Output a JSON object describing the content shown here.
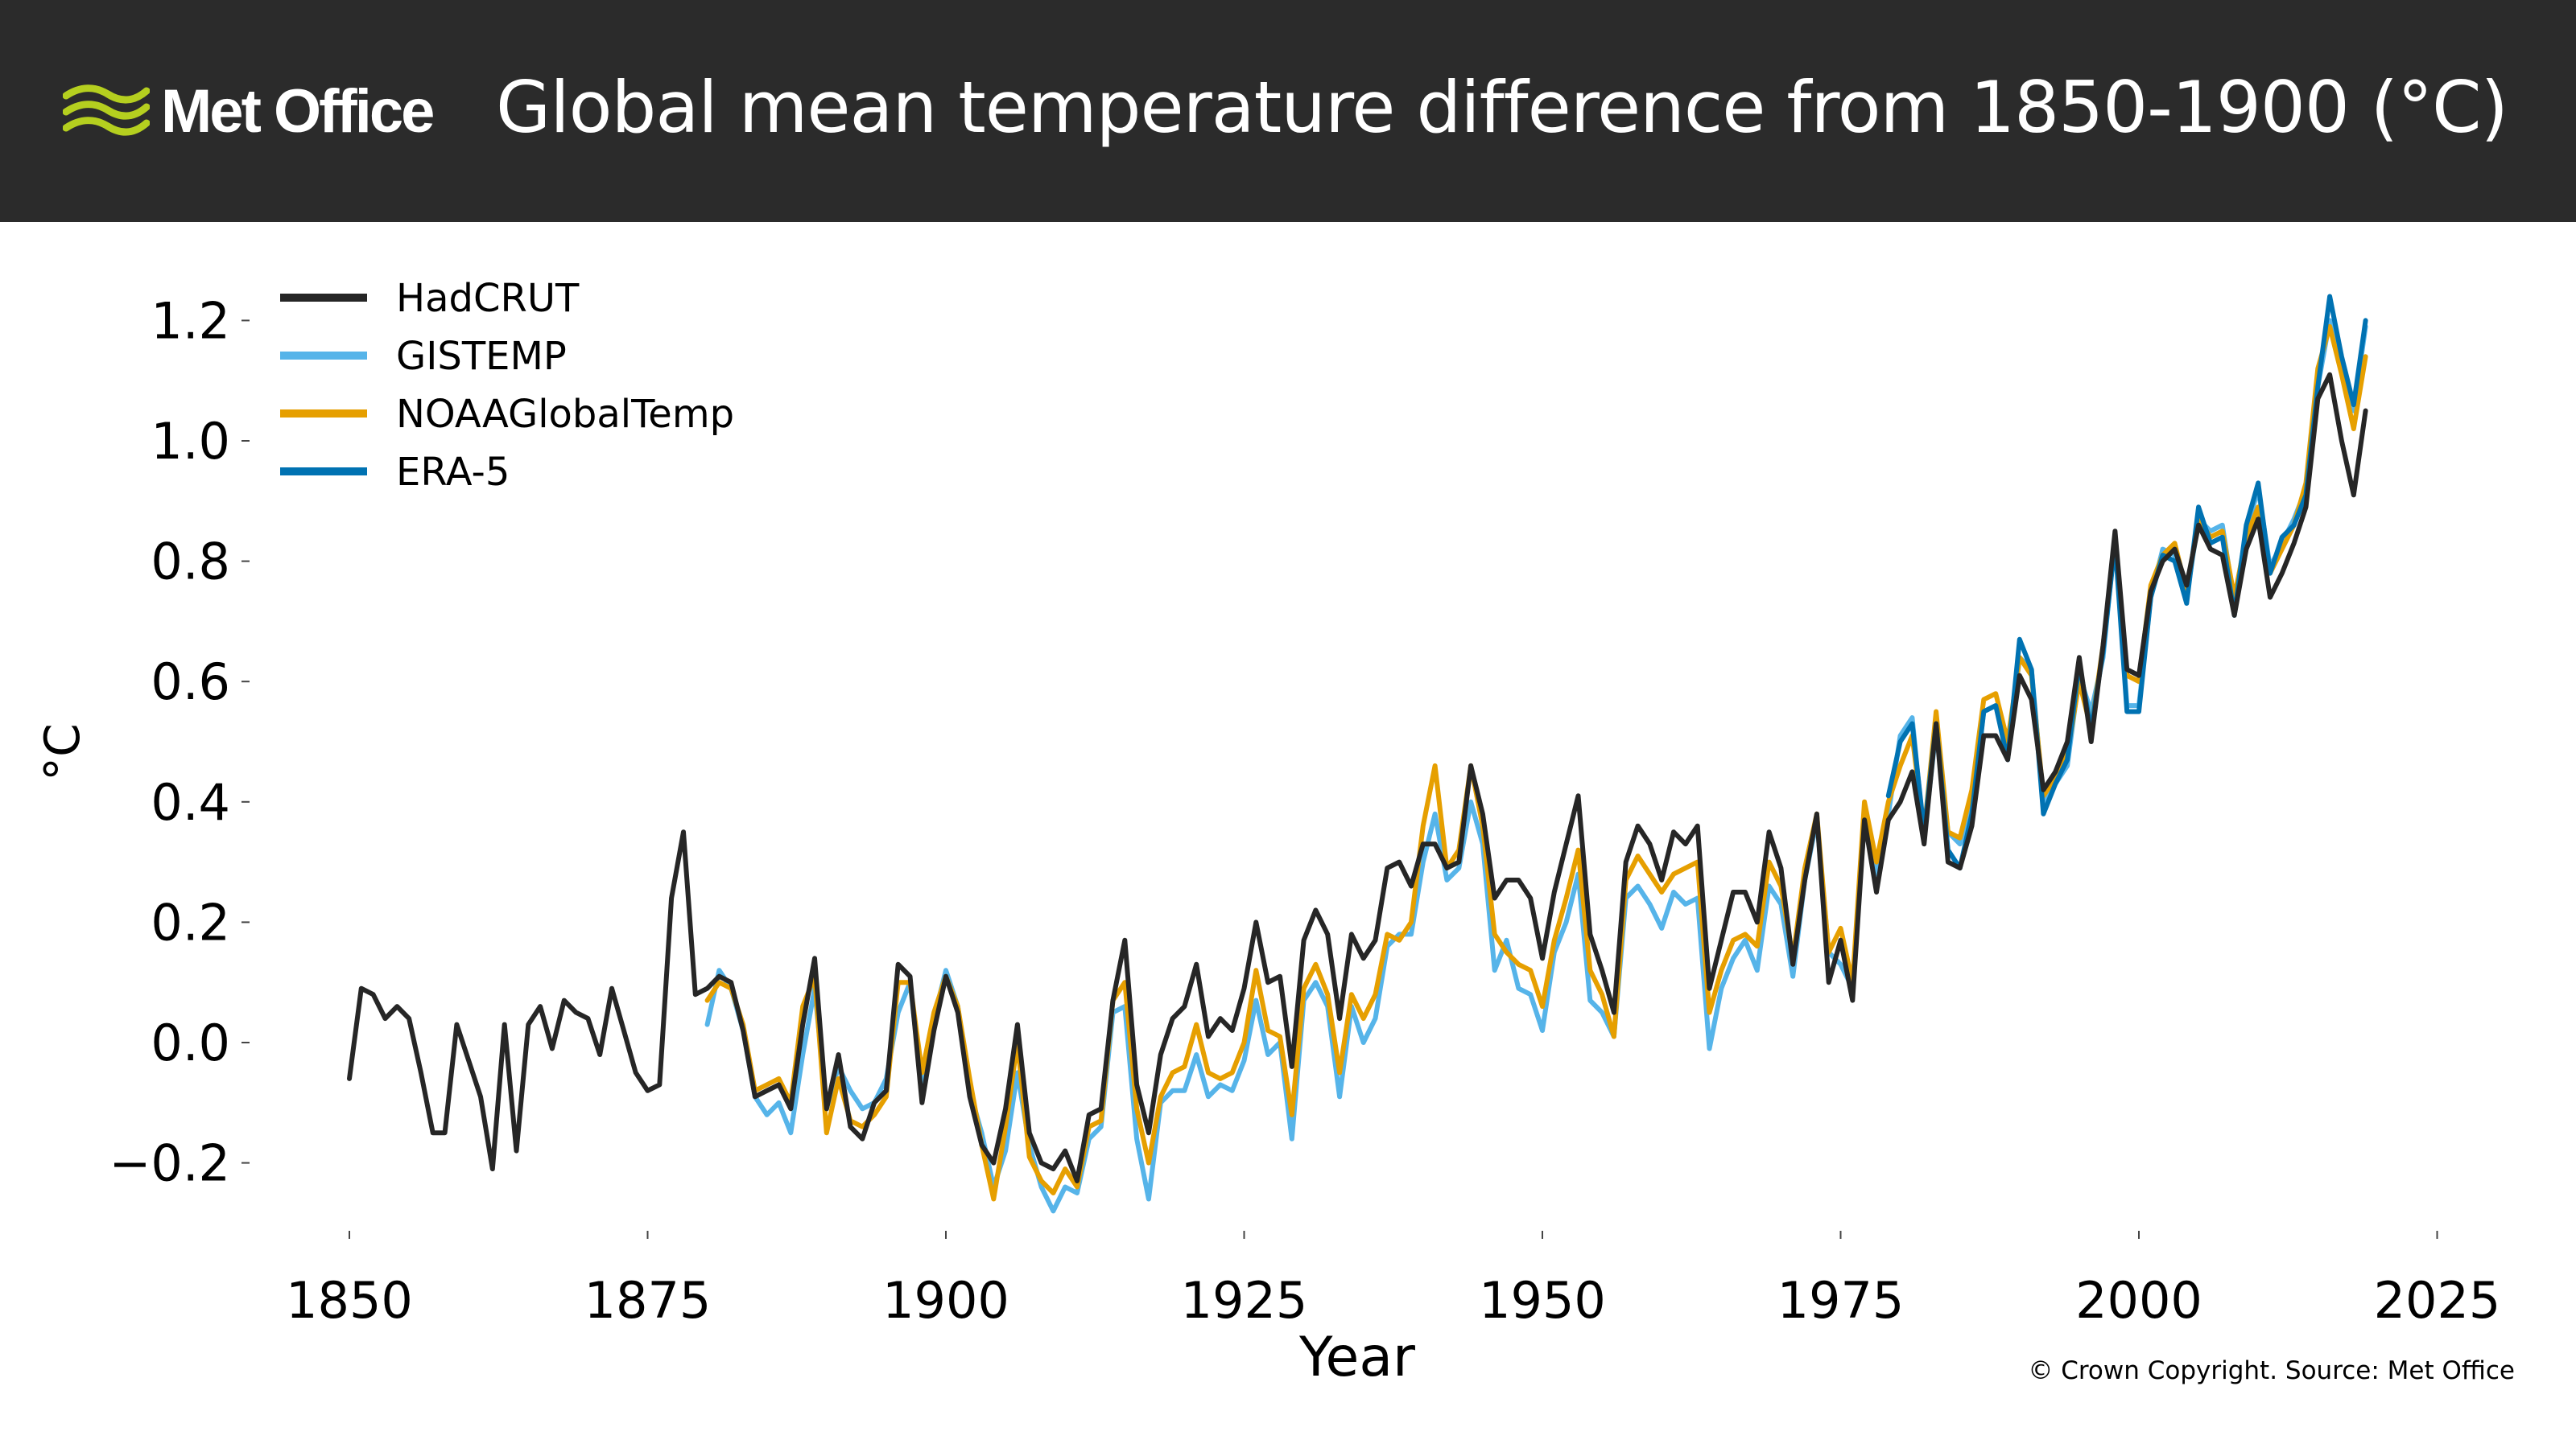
{
  "header": {
    "logo_text": "Met Office",
    "title": "Global mean temperature difference from 1850-1900 (°C)"
  },
  "copyright": "© Crown Copyright. Source: Met Office",
  "colors": {
    "header_bg": "#2b2b2b",
    "logo_accent": "#b5cf1f",
    "HadCRUT": "#262626",
    "GISTEMP": "#56b4e9",
    "NOAAGlobalTemp": "#e69f00",
    "ERA-5": "#0072b2"
  },
  "chart_data": {
    "type": "line",
    "title": "Global mean temperature difference from 1850-1900 (°C)",
    "xlabel": "Year",
    "ylabel": "°C",
    "xlim": [
      1850,
      2020
    ],
    "ylim": [
      -0.3,
      1.25
    ],
    "x_ticks": [
      1850,
      1875,
      1900,
      1925,
      1950,
      1975,
      2000,
      2025
    ],
    "y_ticks": [
      -0.2,
      0.0,
      0.2,
      0.4,
      0.6,
      0.8,
      1.0,
      1.2
    ],
    "y_tick_labels": [
      "−0.2",
      "0.0",
      "0.2",
      "0.4",
      "0.6",
      "0.8",
      "1.0",
      "1.2"
    ],
    "grid": false,
    "legend_position": "top-left",
    "series": [
      {
        "name": "GISTEMP",
        "x_start": 1880,
        "values": [
          0.03,
          0.12,
          0.09,
          0.02,
          -0.09,
          -0.12,
          -0.1,
          -0.15,
          -0.02,
          0.09,
          -0.11,
          -0.04,
          -0.08,
          -0.11,
          -0.1,
          -0.06,
          0.05,
          0.1,
          -0.08,
          0.04,
          0.12,
          0.06,
          -0.08,
          -0.15,
          -0.24,
          -0.18,
          -0.05,
          -0.17,
          -0.24,
          -0.28,
          -0.24,
          -0.25,
          -0.16,
          -0.14,
          0.05,
          0.06,
          -0.16,
          -0.26,
          -0.1,
          -0.08,
          -0.08,
          -0.02,
          -0.09,
          -0.07,
          -0.08,
          -0.03,
          0.07,
          -0.02,
          0.0,
          -0.16,
          0.07,
          0.1,
          0.06,
          -0.09,
          0.06,
          0.0,
          0.04,
          0.16,
          0.18,
          0.18,
          0.3,
          0.38,
          0.27,
          0.29,
          0.4,
          0.33,
          0.12,
          0.17,
          0.09,
          0.08,
          0.02,
          0.15,
          0.2,
          0.28,
          0.07,
          0.05,
          0.01,
          0.24,
          0.26,
          0.23,
          0.19,
          0.25,
          0.23,
          0.24,
          -0.01,
          0.09,
          0.14,
          0.17,
          0.12,
          0.26,
          0.23,
          0.11,
          0.27,
          0.37,
          0.15,
          0.13,
          0.09,
          0.37,
          0.28,
          0.38,
          0.51,
          0.54,
          0.34,
          0.52,
          0.35,
          0.33,
          0.39,
          0.55,
          0.56,
          0.48,
          0.64,
          0.62,
          0.4,
          0.43,
          0.46,
          0.61,
          0.55,
          0.64,
          0.84,
          0.56,
          0.56,
          0.74,
          0.82,
          0.81,
          0.74,
          0.87,
          0.85,
          0.86,
          0.73,
          0.85,
          0.92,
          0.79,
          0.83,
          0.87,
          0.92,
          1.09,
          1.2,
          1.12,
          1.05,
          1.19
        ]
      },
      {
        "name": "NOAAGlobalTemp",
        "x_start": 1880,
        "values": [
          0.07,
          0.1,
          0.09,
          0.03,
          -0.08,
          -0.07,
          -0.06,
          -0.1,
          0.06,
          0.11,
          -0.15,
          -0.06,
          -0.13,
          -0.14,
          -0.12,
          -0.09,
          0.1,
          0.1,
          -0.05,
          0.05,
          0.11,
          0.06,
          -0.06,
          -0.17,
          -0.26,
          -0.14,
          0.0,
          -0.19,
          -0.23,
          -0.25,
          -0.21,
          -0.24,
          -0.14,
          -0.13,
          0.07,
          0.1,
          -0.11,
          -0.2,
          -0.09,
          -0.05,
          -0.04,
          0.03,
          -0.05,
          -0.06,
          -0.05,
          0.0,
          0.12,
          0.02,
          0.01,
          -0.12,
          0.09,
          0.13,
          0.08,
          -0.05,
          0.08,
          0.04,
          0.08,
          0.18,
          0.17,
          0.2,
          0.36,
          0.46,
          0.29,
          0.32,
          0.46,
          0.36,
          0.18,
          0.15,
          0.13,
          0.12,
          0.06,
          0.17,
          0.24,
          0.32,
          0.12,
          0.08,
          0.01,
          0.27,
          0.31,
          0.28,
          0.25,
          0.28,
          0.29,
          0.3,
          0.05,
          0.12,
          0.17,
          0.18,
          0.16,
          0.3,
          0.26,
          0.14,
          0.29,
          0.38,
          0.15,
          0.19,
          0.1,
          0.4,
          0.3,
          0.4,
          0.46,
          0.51,
          0.35,
          0.55,
          0.35,
          0.34,
          0.42,
          0.57,
          0.58,
          0.5,
          0.64,
          0.61,
          0.41,
          0.44,
          0.48,
          0.6,
          0.52,
          0.66,
          0.83,
          0.61,
          0.6,
          0.76,
          0.81,
          0.83,
          0.75,
          0.87,
          0.84,
          0.85,
          0.74,
          0.84,
          0.89,
          0.78,
          0.82,
          0.86,
          0.93,
          1.12,
          1.19,
          1.11,
          1.02,
          1.14
        ]
      },
      {
        "name": "ERA-5",
        "x_start": 1979,
        "values": [
          0.41,
          0.5,
          0.53,
          0.35,
          0.53,
          0.32,
          0.29,
          0.38,
          0.55,
          0.56,
          0.47,
          0.67,
          0.62,
          0.38,
          0.43,
          0.47,
          0.63,
          0.52,
          0.65,
          0.83,
          0.55,
          0.55,
          0.74,
          0.81,
          0.8,
          0.73,
          0.89,
          0.83,
          0.84,
          0.71,
          0.86,
          0.93,
          0.78,
          0.84,
          0.86,
          0.91,
          1.09,
          1.24,
          1.14,
          1.06,
          1.2
        ]
      },
      {
        "name": "HadCRUT",
        "x_start": 1850,
        "values": [
          -0.06,
          0.09,
          0.08,
          0.04,
          0.06,
          0.04,
          -0.05,
          -0.15,
          -0.15,
          0.03,
          -0.03,
          -0.09,
          -0.21,
          0.03,
          -0.18,
          0.03,
          0.06,
          -0.01,
          0.07,
          0.05,
          0.04,
          -0.02,
          0.09,
          0.02,
          -0.05,
          -0.08,
          -0.07,
          0.24,
          0.35,
          0.08,
          0.09,
          0.11,
          0.1,
          0.02,
          -0.09,
          -0.08,
          -0.07,
          -0.11,
          0.03,
          0.14,
          -0.11,
          -0.02,
          -0.14,
          -0.16,
          -0.1,
          -0.08,
          0.13,
          0.11,
          -0.1,
          0.02,
          0.11,
          0.05,
          -0.09,
          -0.17,
          -0.2,
          -0.11,
          0.03,
          -0.15,
          -0.2,
          -0.21,
          -0.18,
          -0.23,
          -0.12,
          -0.11,
          0.07,
          0.17,
          -0.07,
          -0.15,
          -0.02,
          0.04,
          0.06,
          0.13,
          0.01,
          0.04,
          0.02,
          0.09,
          0.2,
          0.1,
          0.11,
          -0.04,
          0.17,
          0.22,
          0.18,
          0.04,
          0.18,
          0.14,
          0.17,
          0.29,
          0.3,
          0.26,
          0.33,
          0.33,
          0.29,
          0.3,
          0.46,
          0.38,
          0.24,
          0.27,
          0.27,
          0.24,
          0.14,
          0.25,
          0.33,
          0.41,
          0.18,
          0.12,
          0.05,
          0.3,
          0.36,
          0.33,
          0.27,
          0.35,
          0.33,
          0.36,
          0.09,
          0.17,
          0.25,
          0.25,
          0.2,
          0.35,
          0.29,
          0.13,
          0.27,
          0.38,
          0.1,
          0.17,
          0.07,
          0.37,
          0.25,
          0.37,
          0.4,
          0.45,
          0.33,
          0.53,
          0.3,
          0.29,
          0.36,
          0.51,
          0.51,
          0.47,
          0.61,
          0.57,
          0.42,
          0.45,
          0.5,
          0.64,
          0.5,
          0.66,
          0.85,
          0.62,
          0.61,
          0.75,
          0.8,
          0.82,
          0.76,
          0.86,
          0.82,
          0.81,
          0.71,
          0.82,
          0.87,
          0.74,
          0.78,
          0.83,
          0.89,
          1.07,
          1.11,
          1.0,
          0.91,
          1.05
        ]
      }
    ]
  }
}
